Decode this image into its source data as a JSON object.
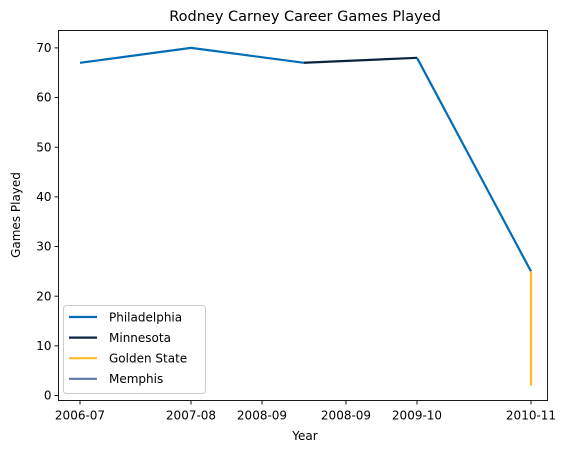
{
  "chart_data": {
    "type": "line",
    "title": "Rodney Carney Career Games Played",
    "xlabel": "Year",
    "ylabel": "Games Played",
    "x_ticks": [
      "2006-07",
      "2007-08",
      "2008-09",
      "2008-09",
      "2009-10",
      "2010-11"
    ],
    "ylim": [
      -1,
      73.5
    ],
    "y_ticks": [
      0,
      10,
      20,
      30,
      40,
      50,
      60,
      70
    ],
    "grid": false,
    "legend": "lower-left",
    "series": [
      {
        "name": "Philadelphia",
        "color": "#006bb6",
        "points": [
          [
            "2006-07",
            67
          ],
          [
            "2007-08",
            70
          ],
          [
            "2008-09",
            67
          ]
        ]
      },
      {
        "name": "Minnesota",
        "color": "#0c2340",
        "points": [
          [
            "2008-09",
            67
          ],
          [
            "2008-09",
            68
          ]
        ]
      },
      {
        "name": "Philadelphia",
        "color": "#006bb6",
        "points": [
          [
            "2009-10",
            68
          ],
          [
            "2010-11",
            25
          ]
        ]
      },
      {
        "name": "Golden State",
        "color": "#fdb927",
        "points": [
          [
            "2010-11",
            25
          ],
          [
            "2010-11",
            2
          ]
        ]
      }
    ],
    "legend_entries": [
      {
        "name": "Philadelphia",
        "color": "#006bb6"
      },
      {
        "name": "Minnesota",
        "color": "#0c2340"
      },
      {
        "name": "Golden State",
        "color": "#fdb927"
      },
      {
        "name": "Memphis",
        "color": "#5d76a9"
      }
    ]
  }
}
